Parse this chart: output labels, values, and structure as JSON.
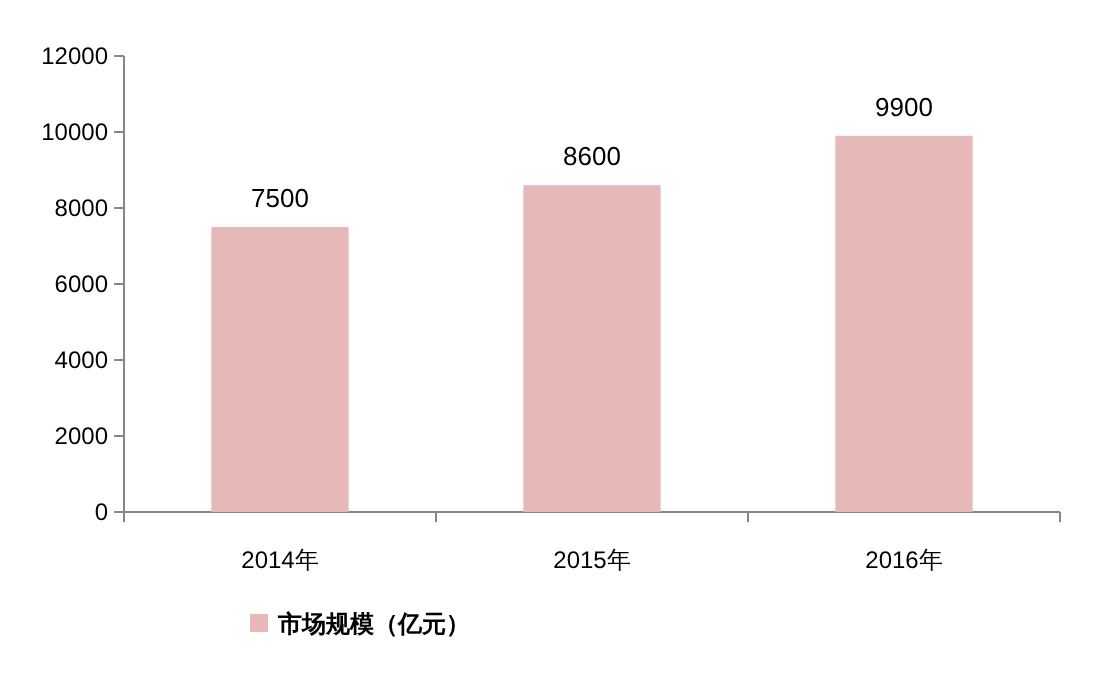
{
  "chart_data": {
    "type": "bar",
    "categories": [
      "2014年",
      "2015年",
      "2016年"
    ],
    "series": [
      {
        "name": "市场规模（亿元）",
        "color": "#e6b9b8",
        "values": [
          7500,
          8600,
          9900
        ]
      }
    ],
    "ylim": [
      0,
      12000
    ],
    "yticks": [
      0,
      2000,
      4000,
      6000,
      8000,
      10000,
      12000
    ],
    "data_labels": true,
    "legend": "bottom"
  }
}
